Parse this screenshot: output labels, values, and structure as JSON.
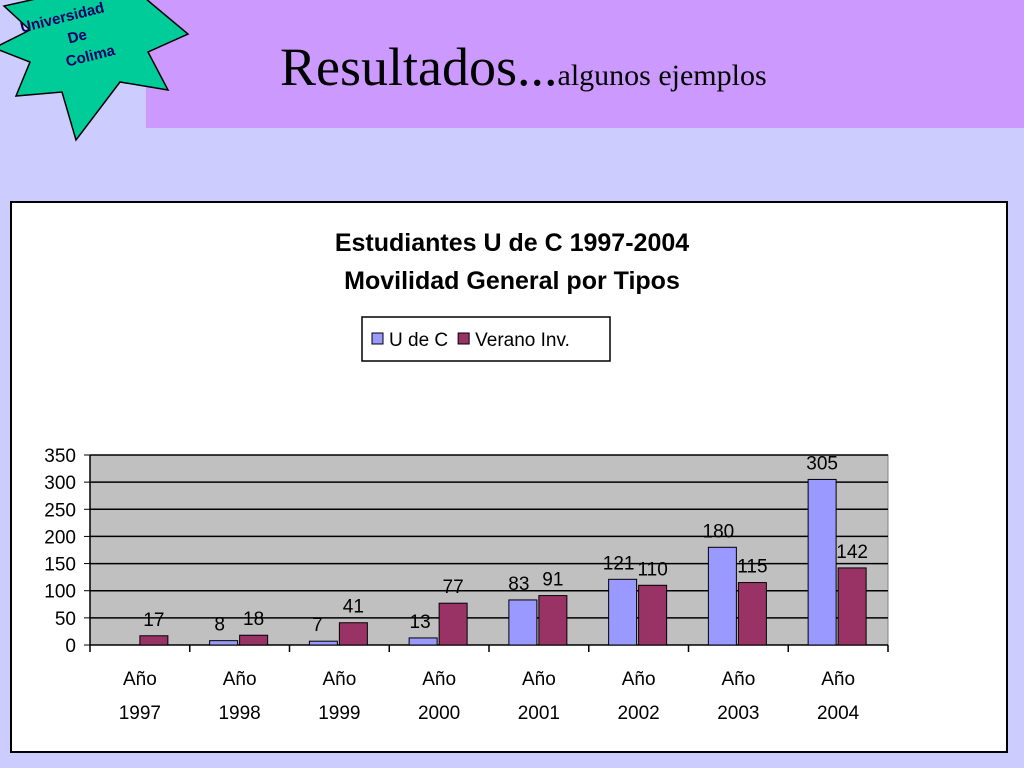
{
  "slide": {
    "title_main": "Resultados...",
    "title_sub": "algunos ejemplos"
  },
  "logo": {
    "line1": "Universidad",
    "line2": "De",
    "line3": "Colima",
    "color": "#00cc99"
  },
  "colors": {
    "background": "#ccccff",
    "header_band": "#cc99ff",
    "plot_area": "#c0c0c0"
  },
  "chart_data": {
    "type": "bar",
    "title": "Estudiantes U de C 1997-2004",
    "subtitle": "Movilidad General por Tipos",
    "categories": [
      [
        "Año",
        "1997"
      ],
      [
        "Año",
        "1998"
      ],
      [
        "Año",
        "1999"
      ],
      [
        "Año",
        "2000"
      ],
      [
        "Año",
        "2001"
      ],
      [
        "Año",
        "2002"
      ],
      [
        "Año",
        "2003"
      ],
      [
        "Año",
        "2004"
      ]
    ],
    "series": [
      {
        "name": "U de C",
        "color": "#9999ff",
        "values": [
          null,
          8,
          7,
          13,
          83,
          121,
          180,
          305
        ]
      },
      {
        "name": "Verano Inv.",
        "color": "#993366",
        "values": [
          17,
          18,
          41,
          77,
          91,
          110,
          115,
          142
        ]
      }
    ],
    "ylim": [
      0,
      350
    ],
    "yticks": [
      0,
      50,
      100,
      150,
      200,
      250,
      300,
      350
    ],
    "grid": true,
    "legend": "top-center"
  }
}
